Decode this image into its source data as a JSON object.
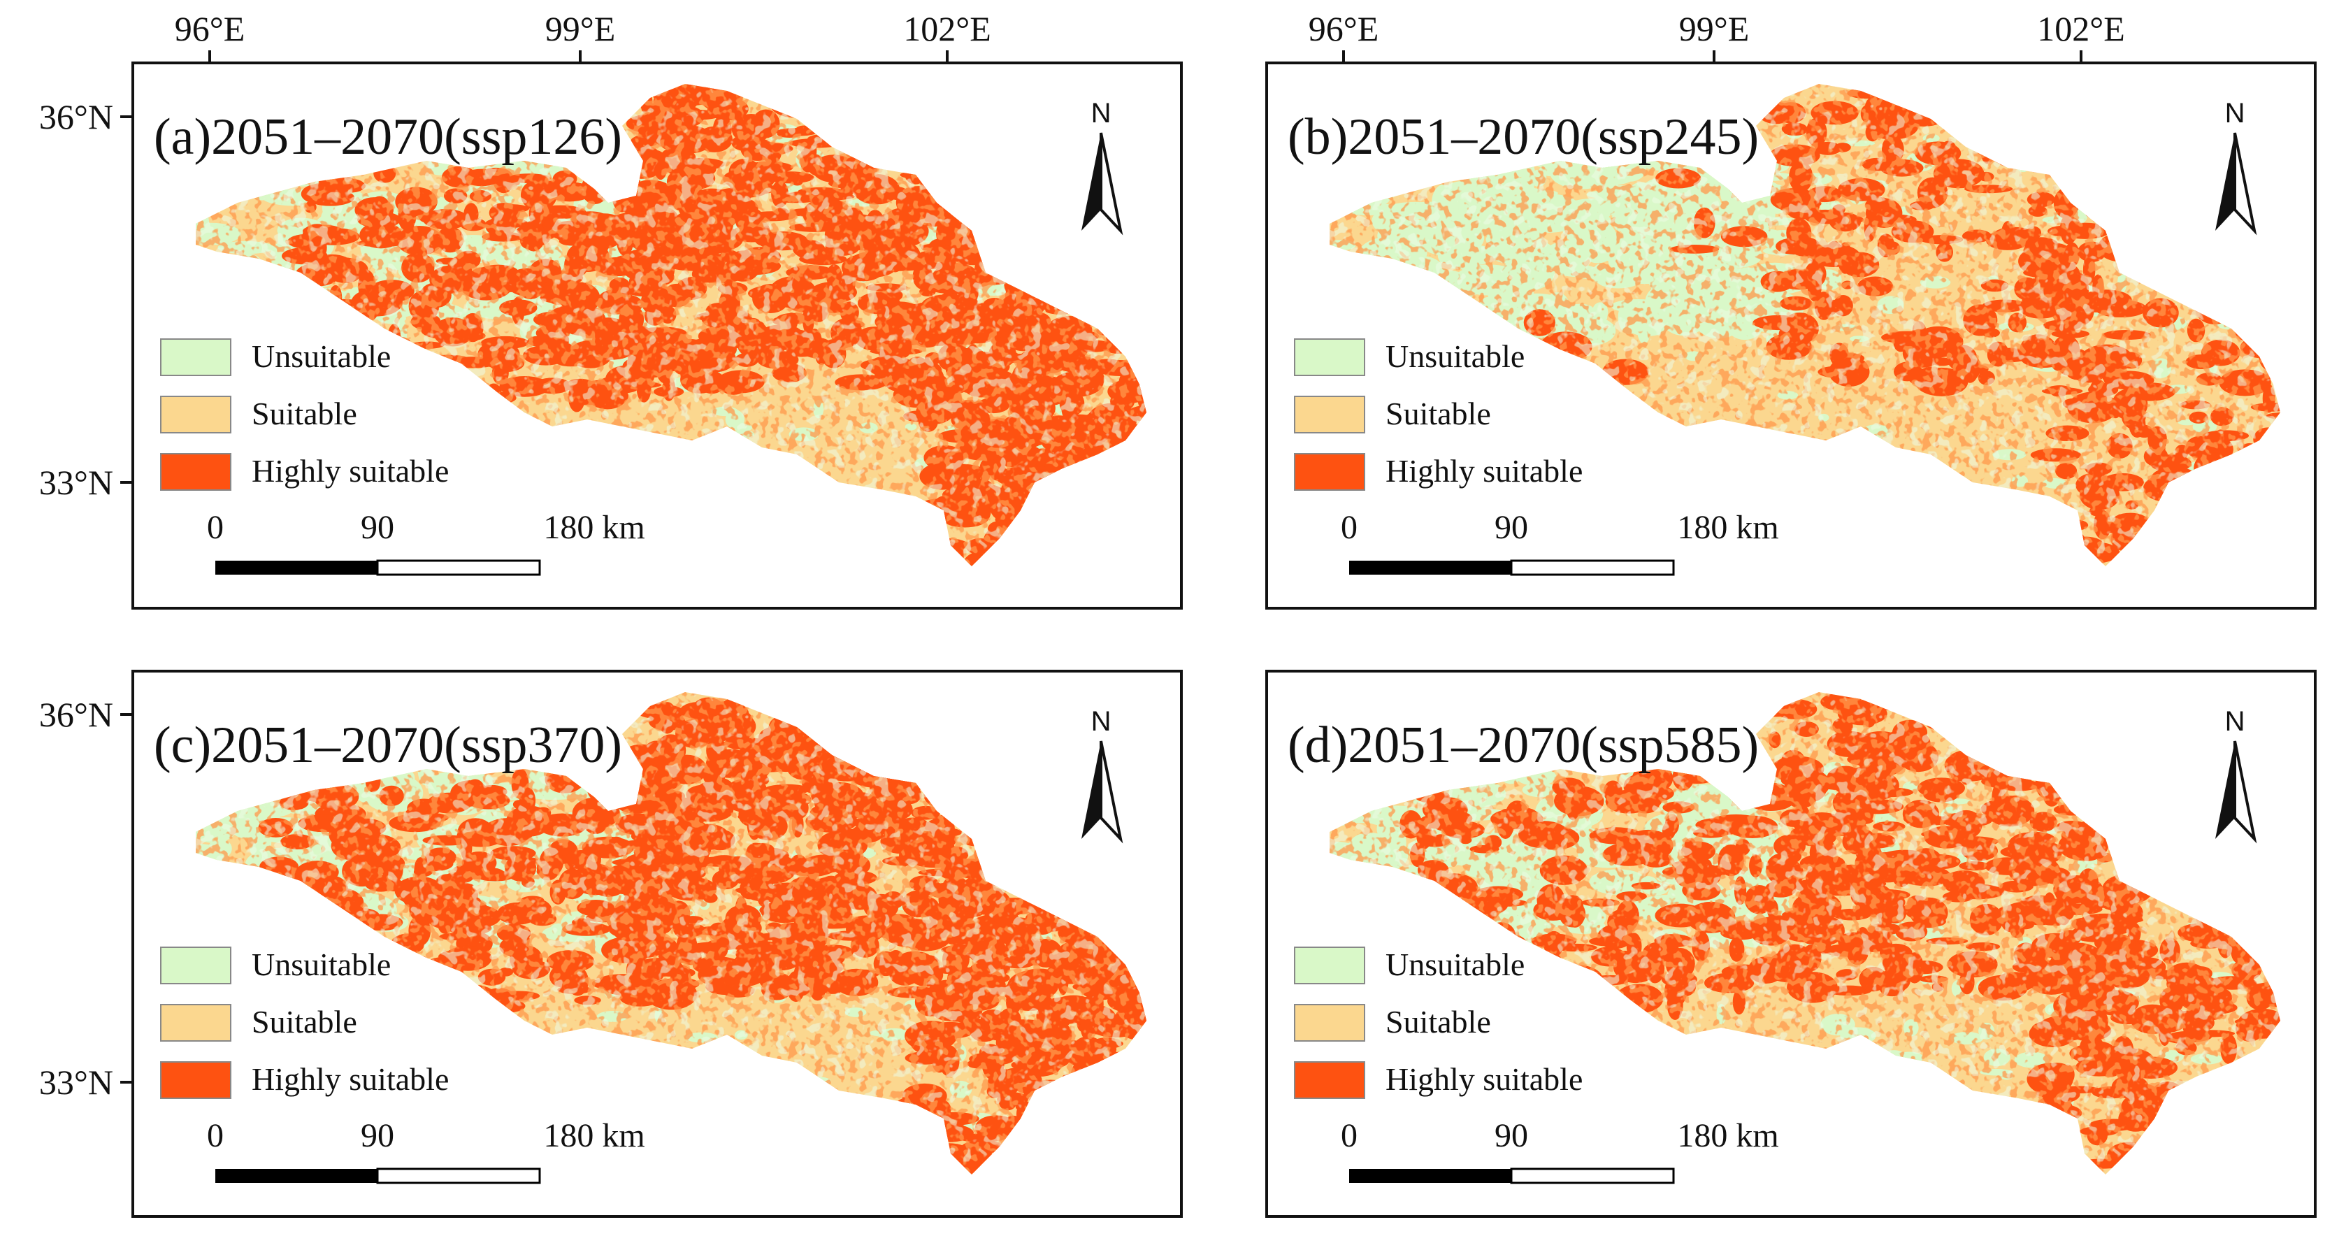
{
  "axis": {
    "longitude_labels": [
      "96°E",
      "99°E",
      "102°E"
    ],
    "latitude_labels": [
      "36°N",
      "33°N"
    ]
  },
  "legend": {
    "items": [
      {
        "label": "Unsuitable",
        "color": "#d9f8c8"
      },
      {
        "label": "Suitable",
        "color": "#fbd78f"
      },
      {
        "label": "Highly suitable",
        "color": "#fe5211"
      }
    ]
  },
  "scale_bar": {
    "labels": [
      "0",
      "90",
      "180 km"
    ]
  },
  "north_arrow": {
    "label": "N"
  },
  "panels": [
    {
      "id": "a",
      "title": "(a)2051–2070(ssp126)",
      "highly_suitable_share": "high"
    },
    {
      "id": "b",
      "title": "(b)2051–2070(ssp245)",
      "highly_suitable_share": "low"
    },
    {
      "id": "c",
      "title": "(c)2051–2070(ssp370)",
      "highly_suitable_share": "high"
    },
    {
      "id": "d",
      "title": "(d)2051–2070(ssp585)",
      "highly_suitable_share": "medium"
    }
  ],
  "colors": {
    "unsuitable": "#d9f8c8",
    "suitable": "#fbd78f",
    "highly_suitable": "#fe5211",
    "frame": "#111111"
  }
}
